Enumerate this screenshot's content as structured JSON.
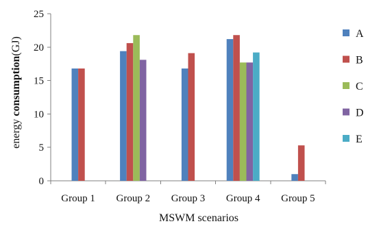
{
  "chart_data": {
    "type": "bar",
    "title": "",
    "xlabel": "MSWM scenarios",
    "ylabel_prefix": "energy ",
    "ylabel_bold": "consumption",
    "ylabel_suffix": "(GJ)",
    "categories": [
      "Group 1",
      "Group 2",
      "Group 3",
      "Group 4",
      "Group 5"
    ],
    "ylim": [
      0,
      25
    ],
    "yticks": [
      0,
      5,
      10,
      15,
      20,
      25
    ],
    "grid": false,
    "legend_position": "right",
    "series": [
      {
        "name": "A",
        "color": "#4F81BD",
        "values": [
          16.8,
          19.4,
          16.8,
          21.2,
          1.0
        ]
      },
      {
        "name": "B",
        "color": "#C0504D",
        "values": [
          16.8,
          20.6,
          19.1,
          21.8,
          5.3
        ]
      },
      {
        "name": "C",
        "color": "#9BBB59",
        "values": [
          null,
          21.8,
          null,
          17.7,
          null
        ]
      },
      {
        "name": "D",
        "color": "#8064A2",
        "values": [
          null,
          18.1,
          null,
          17.7,
          null
        ]
      },
      {
        "name": "E",
        "color": "#4BACC6",
        "values": [
          null,
          null,
          null,
          19.2,
          null
        ]
      }
    ]
  }
}
